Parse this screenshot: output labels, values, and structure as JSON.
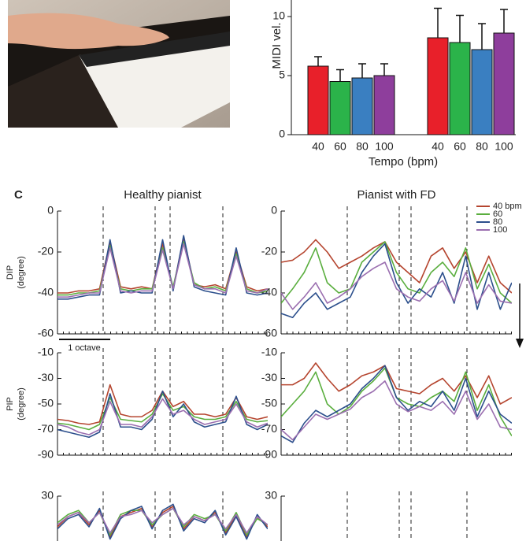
{
  "panel_label": "C",
  "chart_data": [
    {
      "type": "bar",
      "ylabel": "MIDI vel.",
      "xlabel": "Tempo (bpm)",
      "categories": [
        "40",
        "60",
        "80",
        "100",
        "40",
        "60",
        "80",
        "100"
      ],
      "values": [
        5.8,
        4.5,
        4.8,
        5.0,
        8.2,
        7.8,
        7.2,
        8.6
      ],
      "errors": [
        0.8,
        1.0,
        1.2,
        1.0,
        2.5,
        2.3,
        2.2,
        2.0
      ],
      "colors": [
        "#e8202a",
        "#2bb34a",
        "#3a7fc1",
        "#8e3e9c",
        "#e8202a",
        "#2bb34a",
        "#3a7fc1",
        "#8e3e9c"
      ],
      "ylim": [
        0,
        11
      ],
      "yticks": [
        0,
        5,
        10
      ]
    },
    {
      "type": "line",
      "title": "Healthy pianist",
      "ylabel": "DIP",
      "yunit": "(degree)",
      "scale_label": "1 octave",
      "x": [
        0,
        5,
        10,
        15,
        20,
        25,
        30,
        35,
        40,
        45,
        50,
        55,
        60,
        65,
        70,
        75,
        80,
        85,
        90,
        95,
        100
      ],
      "xlim": [
        0,
        100
      ],
      "ylim": [
        -60,
        0
      ],
      "yticks": [
        0,
        -20,
        -40,
        -60
      ],
      "series": [
        {
          "color": "#b5452f",
          "values": [
            -40,
            -40,
            -39,
            -39,
            -38,
            -15,
            -37,
            -38,
            -37,
            -38,
            -16,
            -38,
            -13,
            -36,
            -37,
            -36,
            -38,
            -20,
            -37,
            -39,
            -38
          ]
        },
        {
          "color": "#5aae3e",
          "values": [
            -41,
            -41,
            -40,
            -40,
            -39,
            -17,
            -38,
            -39,
            -38,
            -38,
            -18,
            -37,
            -15,
            -35,
            -38,
            -37,
            -39,
            -21,
            -38,
            -40,
            -39
          ]
        },
        {
          "color": "#2c4f8c",
          "values": [
            -43,
            -43,
            -42,
            -41,
            -41,
            -14,
            -40,
            -39,
            -40,
            -40,
            -14,
            -39,
            -12,
            -37,
            -39,
            -40,
            -41,
            -18,
            -40,
            -41,
            -40
          ]
        },
        {
          "color": "#9b6fb0",
          "values": [
            -42,
            -42,
            -41,
            -40,
            -40,
            -18,
            -39,
            -40,
            -39,
            -39,
            -19,
            -38,
            -16,
            -36,
            -38,
            -38,
            -40,
            -22,
            -39,
            -40,
            -38
          ]
        }
      ]
    },
    {
      "type": "line",
      "title": "Pianist with FD",
      "legend": "upper right",
      "x": [
        0,
        5,
        10,
        15,
        20,
        25,
        30,
        35,
        40,
        45,
        50,
        55,
        60,
        65,
        70,
        75,
        80,
        85,
        90,
        95,
        100
      ],
      "xlim": [
        0,
        100
      ],
      "ylim": [
        -60,
        0
      ],
      "yticks": [
        0,
        -20,
        -40,
        -60
      ],
      "series": [
        {
          "name": "40 bpm",
          "color": "#b5452f",
          "values": [
            -25,
            -24,
            -20,
            -14,
            -20,
            -28,
            -25,
            -22,
            -18,
            -15,
            -25,
            -30,
            -35,
            -22,
            -18,
            -28,
            -20,
            -35,
            -22,
            -35,
            -40
          ]
        },
        {
          "name": "60",
          "color": "#5aae3e",
          "values": [
            -45,
            -38,
            -30,
            -18,
            -35,
            -40,
            -38,
            -25,
            -20,
            -15,
            -30,
            -38,
            -40,
            -30,
            -25,
            -32,
            -18,
            -38,
            -26,
            -40,
            -45
          ]
        },
        {
          "name": "80",
          "color": "#2c4f8c",
          "values": [
            -50,
            -52,
            -45,
            -40,
            -48,
            -45,
            -42,
            -30,
            -22,
            -16,
            -35,
            -45,
            -38,
            -42,
            -30,
            -45,
            -22,
            -48,
            -30,
            -48,
            -35
          ]
        },
        {
          "name": "100",
          "color": "#9b6fb0",
          "values": [
            -40,
            -48,
            -42,
            -35,
            -45,
            -42,
            -38,
            -32,
            -28,
            -25,
            -38,
            -42,
            -44,
            -38,
            -34,
            -44,
            -30,
            -45,
            -36,
            -44,
            -45
          ]
        }
      ]
    },
    {
      "type": "line",
      "ylabel": "PIP",
      "yunit": "(degree)",
      "x": [
        0,
        5,
        10,
        15,
        20,
        25,
        30,
        35,
        40,
        45,
        50,
        55,
        60,
        65,
        70,
        75,
        80,
        85,
        90,
        95,
        100
      ],
      "xlim": [
        0,
        100
      ],
      "ylim": [
        -90,
        -10
      ],
      "yticks": [
        -10,
        -30,
        -50,
        -70,
        -90
      ],
      "series": [
        {
          "color": "#b5452f",
          "values": [
            -62,
            -63,
            -65,
            -66,
            -64,
            -35,
            -58,
            -60,
            -60,
            -55,
            -40,
            -52,
            -48,
            -58,
            -58,
            -60,
            -58,
            -45,
            -60,
            -62,
            -60
          ]
        },
        {
          "color": "#5aae3e",
          "values": [
            -65,
            -66,
            -68,
            -70,
            -66,
            -45,
            -62,
            -63,
            -64,
            -58,
            -42,
            -55,
            -52,
            -60,
            -62,
            -62,
            -60,
            -48,
            -62,
            -64,
            -63
          ]
        },
        {
          "color": "#2c4f8c",
          "values": [
            -70,
            -72,
            -74,
            -76,
            -72,
            -42,
            -68,
            -68,
            -70,
            -62,
            -40,
            -60,
            -50,
            -64,
            -68,
            -66,
            -64,
            -44,
            -66,
            -70,
            -66
          ]
        },
        {
          "color": "#9b6fb0",
          "values": [
            -66,
            -68,
            -72,
            -74,
            -70,
            -48,
            -66,
            -66,
            -68,
            -60,
            -46,
            -58,
            -55,
            -62,
            -66,
            -64,
            -62,
            -50,
            -64,
            -68,
            -65
          ]
        }
      ]
    },
    {
      "type": "line",
      "x": [
        0,
        5,
        10,
        15,
        20,
        25,
        30,
        35,
        40,
        45,
        50,
        55,
        60,
        65,
        70,
        75,
        80,
        85,
        90,
        95,
        100
      ],
      "xlim": [
        0,
        100
      ],
      "ylim": [
        -90,
        -10
      ],
      "yticks": [
        -10,
        -30,
        -50,
        -70,
        -90
      ],
      "series": [
        {
          "color": "#b5452f",
          "values": [
            -35,
            -35,
            -30,
            -18,
            -30,
            -40,
            -35,
            -28,
            -25,
            -20,
            -38,
            -40,
            -42,
            -35,
            -30,
            -40,
            -28,
            -45,
            -28,
            -50,
            -45
          ]
        },
        {
          "color": "#5aae3e",
          "values": [
            -60,
            -50,
            -40,
            -25,
            -50,
            -58,
            -52,
            -40,
            -32,
            -22,
            -45,
            -50,
            -52,
            -45,
            -40,
            -48,
            -25,
            -55,
            -35,
            -60,
            -75
          ]
        },
        {
          "color": "#2c4f8c",
          "values": [
            -75,
            -80,
            -65,
            -55,
            -60,
            -55,
            -50,
            -38,
            -30,
            -20,
            -45,
            -55,
            -48,
            -52,
            -40,
            -55,
            -30,
            -60,
            -40,
            -58,
            -65
          ]
        },
        {
          "color": "#9b6fb0",
          "values": [
            -70,
            -78,
            -68,
            -58,
            -62,
            -58,
            -54,
            -45,
            -40,
            -32,
            -50,
            -56,
            -52,
            -55,
            -48,
            -58,
            -40,
            -62,
            -50,
            -68,
            -70
          ]
        }
      ]
    },
    {
      "type": "line",
      "x": [
        0,
        5,
        10,
        15,
        20,
        25,
        30,
        35,
        40,
        45,
        50,
        55,
        60,
        65,
        70,
        75,
        80,
        85,
        90,
        95,
        100
      ],
      "xlim": [
        0,
        100
      ],
      "ylim": [
        -30,
        30
      ],
      "yticks": [
        30
      ],
      "series": [
        {
          "color": "#b5452f",
          "values": [
            15,
            20,
            22,
            16,
            23,
            10,
            20,
            22,
            24,
            15,
            22,
            25,
            14,
            20,
            18,
            22,
            12,
            21,
            10,
            20,
            15
          ]
        },
        {
          "color": "#5aae3e",
          "values": [
            17,
            21,
            23,
            17,
            22,
            11,
            21,
            23,
            23,
            16,
            21,
            24,
            15,
            21,
            19,
            21,
            13,
            22,
            11,
            19,
            16
          ]
        },
        {
          "color": "#2c4f8c",
          "values": [
            14,
            19,
            21,
            15,
            24,
            9,
            19,
            23,
            25,
            14,
            23,
            26,
            13,
            19,
            17,
            23,
            11,
            20,
            9,
            21,
            14
          ]
        },
        {
          "color": "#9b6fb0",
          "values": [
            16,
            20,
            22,
            17,
            22,
            12,
            20,
            21,
            23,
            17,
            21,
            24,
            16,
            20,
            18,
            21,
            14,
            21,
            12,
            20,
            16
          ]
        }
      ]
    },
    {
      "type": "line",
      "x": [
        0,
        5,
        10,
        15,
        20,
        25,
        30,
        35,
        40,
        45,
        50,
        55,
        60,
        65,
        70,
        75,
        80,
        85,
        90,
        95,
        100
      ],
      "xlim": [
        0,
        100
      ],
      "ylim": [
        -30,
        30
      ],
      "yticks": [
        30
      ],
      "series": []
    }
  ]
}
